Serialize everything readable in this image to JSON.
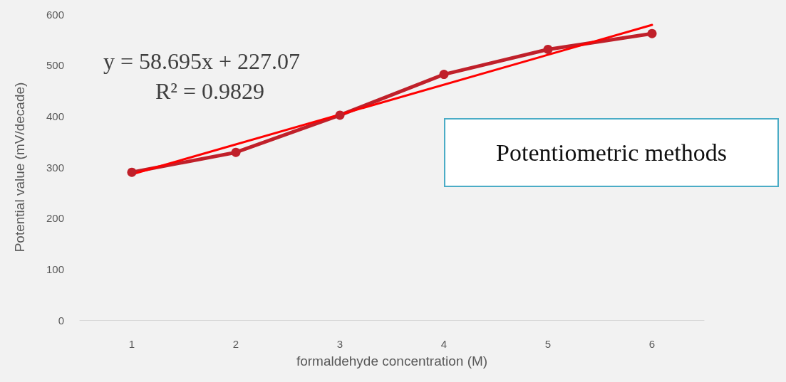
{
  "chart_data": {
    "type": "line",
    "xlabel": "formaldehyde concentration (M)",
    "ylabel": "Potential value (mV/decade)",
    "x": [
      1,
      2,
      3,
      4,
      5,
      6
    ],
    "series": [
      {
        "color": "#c0202a",
        "values": [
          290,
          329,
          402,
          482,
          531,
          562
        ],
        "marker": "circle"
      },
      {
        "type": "line",
        "color": "#ff0000",
        "x": [
          1,
          6
        ],
        "values": [
          286,
          579
        ],
        "marker": "none"
      }
    ],
    "xlim": [
      0.5,
      6.5
    ],
    "xticks": [
      1,
      2,
      3,
      4,
      5,
      6
    ],
    "ylim": [
      0,
      600
    ],
    "yticks": [
      0,
      100,
      200,
      300,
      400,
      500,
      600
    ],
    "grid": false,
    "annotations": [
      "y = 58.695x + 227.07",
      "R² = 0.9829",
      "Potentiometric methods"
    ]
  }
}
